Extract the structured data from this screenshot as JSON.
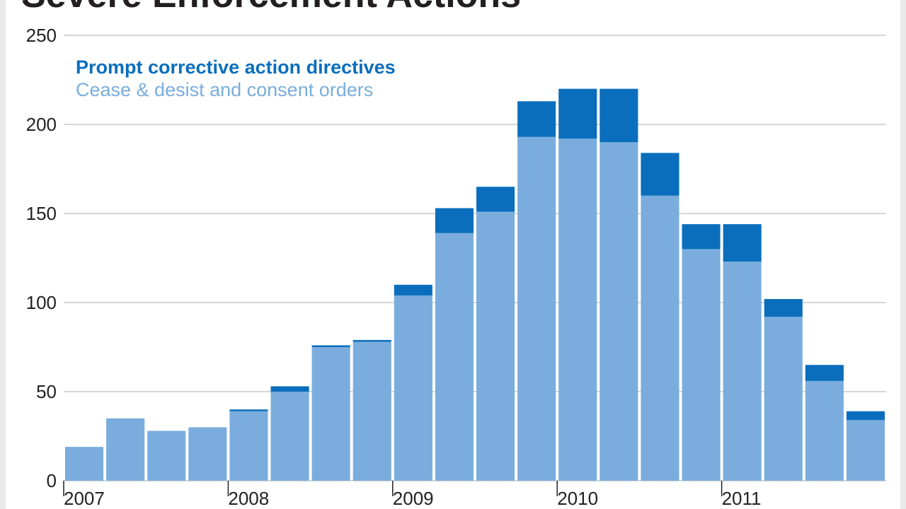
{
  "colors": {
    "prompt": "#0a6ebd",
    "cease": "#7aaddd",
    "grid": "#c8c8c8",
    "text": "#231f20",
    "frame": "#e9e9e9"
  },
  "chart_data": {
    "type": "bar",
    "stacked": true,
    "title": "Severe Enforcement Actions",
    "xlabel": "",
    "ylabel": "",
    "ylim": [
      0,
      250
    ],
    "yticks": [
      "0",
      "50",
      "100",
      "150",
      "200",
      "250"
    ],
    "grid": true,
    "legend_position": "top-left",
    "categories": [
      "2007 Q1",
      "2007 Q2",
      "2007 Q3",
      "2007 Q4",
      "2008 Q1",
      "2008 Q2",
      "2008 Q3",
      "2008 Q4",
      "2009 Q1",
      "2009 Q2",
      "2009 Q3",
      "2009 Q4",
      "2010 Q1",
      "2010 Q2",
      "2010 Q3",
      "2010 Q4",
      "2011 Q1",
      "2011 Q2",
      "2011 Q3",
      "2011 Q4"
    ],
    "year_labels": [
      {
        "label": "2007",
        "index": 0
      },
      {
        "label": "2008",
        "index": 4
      },
      {
        "label": "2009",
        "index": 8
      },
      {
        "label": "2010",
        "index": 12
      },
      {
        "label": "2011",
        "index": 16
      }
    ],
    "series": [
      {
        "name": "Cease & desist and consent orders",
        "color_key": "cease",
        "values": [
          19,
          35,
          28,
          30,
          39,
          50,
          75,
          78,
          104,
          139,
          151,
          193,
          192,
          190,
          160,
          130,
          123,
          92,
          56,
          34
        ]
      },
      {
        "name": "Prompt corrective action directives",
        "color_key": "prompt",
        "values": [
          0,
          0,
          0,
          0,
          1,
          3,
          1,
          1,
          6,
          14,
          14,
          20,
          28,
          30,
          24,
          14,
          21,
          10,
          9,
          5
        ]
      }
    ]
  }
}
